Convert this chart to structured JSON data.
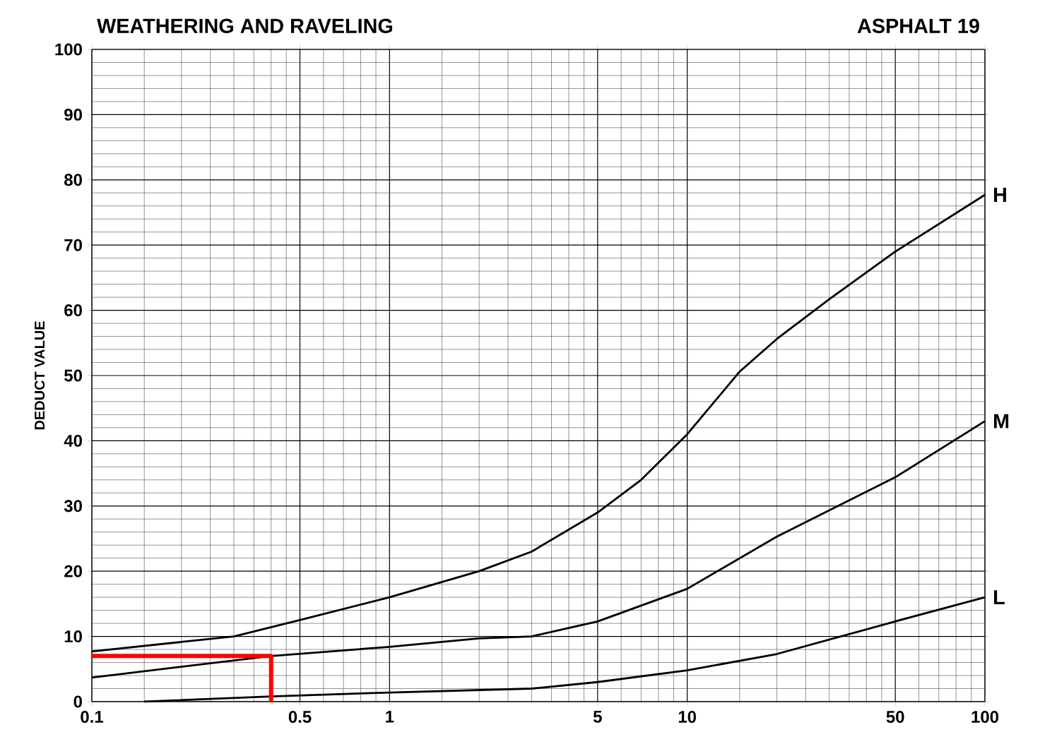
{
  "chart_data": {
    "type": "line",
    "title": "WEATHERING AND RAVELING",
    "subtitle": "ASPHALT 19",
    "ylabel": "DEDUCT VALUE",
    "log": "x",
    "grid": true,
    "marker": "none",
    "line_style": "solid",
    "xlim": [
      0.1,
      100
    ],
    "ylim": [
      0,
      100
    ],
    "xticks": [
      0.1,
      0.5,
      1,
      5,
      10,
      50,
      100
    ],
    "yticks": [
      0,
      10,
      20,
      30,
      40,
      50,
      60,
      70,
      80,
      90,
      100
    ],
    "series": [
      {
        "name": "H",
        "color": "#000000",
        "x": [
          0.1,
          0.3,
          0.5,
          1,
          2,
          3,
          5,
          7,
          10,
          15,
          20,
          30,
          50,
          100
        ],
        "values": [
          7.7,
          10,
          12.5,
          16,
          20,
          23,
          29,
          34,
          41,
          50.6,
          55.6,
          61.7,
          69,
          77.7
        ]
      },
      {
        "name": "M",
        "color": "#000000",
        "x": [
          0.1,
          0.4,
          1,
          2,
          3,
          4,
          5,
          10,
          20,
          50,
          100
        ],
        "values": [
          3.7,
          7,
          8.4,
          9.7,
          10,
          11.3,
          12.3,
          17.3,
          25.3,
          34.4,
          43
        ]
      },
      {
        "name": "L",
        "color": "#000000",
        "x": [
          0.15,
          0.4,
          1,
          3,
          5,
          10,
          20,
          50,
          100
        ],
        "values": [
          0,
          0.8,
          1.4,
          2,
          3,
          4.8,
          7.3,
          12.3,
          16
        ]
      },
      {
        "color": "#ff0000",
        "x": [
          0.1,
          0.4,
          0.4
        ],
        "values": [
          7,
          7,
          0
        ]
      }
    ]
  }
}
